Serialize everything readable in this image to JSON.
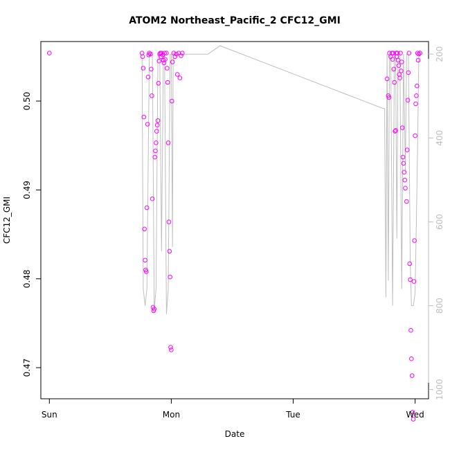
{
  "chart_data": {
    "type": "scatter",
    "title": "ATOM2 Northeast_Pacific_2 CFC12_GMI",
    "xlabel": "Date",
    "ylabel": "CFC12_GMI",
    "x_ticks": [
      "Sun",
      "Mon",
      "Tue",
      "Wed"
    ],
    "y_ticks": [
      "0.47",
      "0.48",
      "0.49",
      "0.50"
    ],
    "y2_ticks": [
      "200",
      "400",
      "600",
      "800",
      "1000"
    ],
    "xlim": [
      -0.07,
      3.11
    ],
    "ylim": [
      0.4665,
      0.5067
    ],
    "y2lim": [
      1022,
      170
    ],
    "grid": false,
    "colors": {
      "points": "#ff00ff",
      "line": "#bebebe",
      "axis": "#000000",
      "right_axis": "#bdbdbd"
    },
    "series": [
      {
        "type": "scatter",
        "points": [
          [
            0.0,
            0.5054
          ],
          [
            0.76,
            0.5054
          ],
          [
            0.765,
            0.505
          ],
          [
            0.77,
            0.5037
          ],
          [
            0.775,
            0.4982
          ],
          [
            0.78,
            0.4856
          ],
          [
            0.785,
            0.4821
          ],
          [
            0.79,
            0.481
          ],
          [
            0.795,
            0.4808
          ],
          [
            0.8,
            0.488
          ],
          [
            0.805,
            0.4974
          ],
          [
            0.81,
            0.5027
          ],
          [
            0.815,
            0.5052
          ],
          [
            0.82,
            0.5054
          ],
          [
            0.83,
            0.5053
          ],
          [
            0.835,
            0.5036
          ],
          [
            0.84,
            0.5006
          ],
          [
            0.845,
            0.489
          ],
          [
            0.85,
            0.4768
          ],
          [
            0.855,
            0.4764
          ],
          [
            0.86,
            0.4766
          ],
          [
            0.865,
            0.4937
          ],
          [
            0.87,
            0.4944
          ],
          [
            0.875,
            0.4953
          ],
          [
            0.88,
            0.4966
          ],
          [
            0.885,
            0.4973
          ],
          [
            0.89,
            0.4978
          ],
          [
            0.895,
            0.502
          ],
          [
            0.9,
            0.5045
          ],
          [
            0.905,
            0.5053
          ],
          [
            0.91,
            0.5054
          ],
          [
            0.915,
            0.505
          ],
          [
            0.92,
            0.5054
          ],
          [
            0.93,
            0.5052
          ],
          [
            0.935,
            0.5046
          ],
          [
            0.94,
            0.5043
          ],
          [
            0.945,
            0.5054
          ],
          [
            0.95,
            0.5047
          ],
          [
            0.96,
            0.5054
          ],
          [
            0.965,
            0.5037
          ],
          [
            0.97,
            0.5021
          ],
          [
            0.975,
            0.4953
          ],
          [
            0.98,
            0.4864
          ],
          [
            0.985,
            0.4831
          ],
          [
            0.99,
            0.4802
          ],
          [
            0.995,
            0.4723
          ],
          [
            1.0,
            0.472
          ],
          [
            1.005,
            0.5
          ],
          [
            1.01,
            0.5044
          ],
          [
            1.02,
            0.5054
          ],
          [
            1.03,
            0.505
          ],
          [
            1.04,
            0.5053
          ],
          [
            1.05,
            0.503
          ],
          [
            1.06,
            0.5054
          ],
          [
            1.07,
            0.5026
          ],
          [
            1.08,
            0.5051
          ],
          [
            1.09,
            0.5054
          ],
          [
            2.77,
            0.5025
          ],
          [
            2.78,
            0.5006
          ],
          [
            2.785,
            0.5004
          ],
          [
            2.79,
            0.5054
          ],
          [
            2.8,
            0.505
          ],
          [
            2.81,
            0.5054
          ],
          [
            2.815,
            0.5047
          ],
          [
            2.82,
            0.5054
          ],
          [
            2.825,
            0.5036
          ],
          [
            2.83,
            0.5021
          ],
          [
            2.835,
            0.4966
          ],
          [
            2.84,
            0.4967
          ],
          [
            2.845,
            0.5054
          ],
          [
            2.85,
            0.505
          ],
          [
            2.855,
            0.5054
          ],
          [
            2.86,
            0.5046
          ],
          [
            2.865,
            0.504
          ],
          [
            2.87,
            0.503
          ],
          [
            2.875,
            0.5026
          ],
          [
            2.88,
            0.5054
          ],
          [
            2.885,
            0.5034
          ],
          [
            2.89,
            0.5044
          ],
          [
            2.895,
            0.497
          ],
          [
            2.9,
            0.4937
          ],
          [
            2.905,
            0.493
          ],
          [
            2.91,
            0.492
          ],
          [
            2.915,
            0.4911
          ],
          [
            2.92,
            0.4902
          ],
          [
            2.93,
            0.4887
          ],
          [
            2.935,
            0.4945
          ],
          [
            2.94,
            0.5001
          ],
          [
            2.945,
            0.5032
          ],
          [
            2.95,
            0.5054
          ],
          [
            2.955,
            0.4817
          ],
          [
            2.96,
            0.4799
          ],
          [
            2.965,
            0.4742
          ],
          [
            2.97,
            0.471
          ],
          [
            2.975,
            0.4691
          ],
          [
            2.98,
            0.465
          ],
          [
            2.985,
            0.4642
          ],
          [
            2.99,
            0.4797
          ],
          [
            2.995,
            0.4843
          ],
          [
            3.0,
            0.4961
          ],
          [
            3.005,
            0.4997
          ],
          [
            3.01,
            0.5006
          ],
          [
            3.015,
            0.5017
          ],
          [
            3.02,
            0.5054
          ],
          [
            3.025,
            0.5046
          ],
          [
            3.03,
            0.5053
          ],
          [
            3.04,
            0.5054
          ]
        ]
      },
      {
        "type": "line",
        "y_axis": "right",
        "points": [
          [
            0.76,
            200
          ],
          [
            0.77,
            760
          ],
          [
            0.785,
            800
          ],
          [
            0.8,
            760
          ],
          [
            0.82,
            200
          ],
          [
            0.845,
            200
          ],
          [
            0.86,
            810
          ],
          [
            0.875,
            760
          ],
          [
            0.89,
            200
          ],
          [
            0.905,
            200
          ],
          [
            0.92,
            670
          ],
          [
            0.935,
            200
          ],
          [
            0.945,
            200
          ],
          [
            0.96,
            820
          ],
          [
            0.975,
            760
          ],
          [
            0.99,
            200
          ],
          [
            1.0,
            200
          ],
          [
            1.01,
            660
          ],
          [
            1.015,
            200
          ],
          [
            1.04,
            200
          ],
          [
            1.08,
            200
          ],
          [
            1.3,
            200
          ],
          [
            1.4,
            180
          ],
          [
            2.74,
            330
          ],
          [
            2.75,
            330
          ],
          [
            2.76,
            780
          ],
          [
            2.77,
            200
          ],
          [
            2.78,
            740
          ],
          [
            2.79,
            200
          ],
          [
            2.8,
            200
          ],
          [
            2.815,
            800
          ],
          [
            2.83,
            200
          ],
          [
            2.84,
            200
          ],
          [
            2.85,
            640
          ],
          [
            2.86,
            200
          ],
          [
            2.875,
            200
          ],
          [
            2.89,
            760
          ],
          [
            2.905,
            200
          ],
          [
            2.92,
            480
          ],
          [
            2.93,
            200
          ],
          [
            2.945,
            200
          ],
          [
            2.96,
            700
          ],
          [
            2.97,
            800
          ],
          [
            2.985,
            800
          ],
          [
            3.0,
            770
          ],
          [
            3.01,
            600
          ],
          [
            3.02,
            420
          ],
          [
            3.03,
            210
          ],
          [
            3.04,
            190
          ]
        ]
      }
    ]
  }
}
